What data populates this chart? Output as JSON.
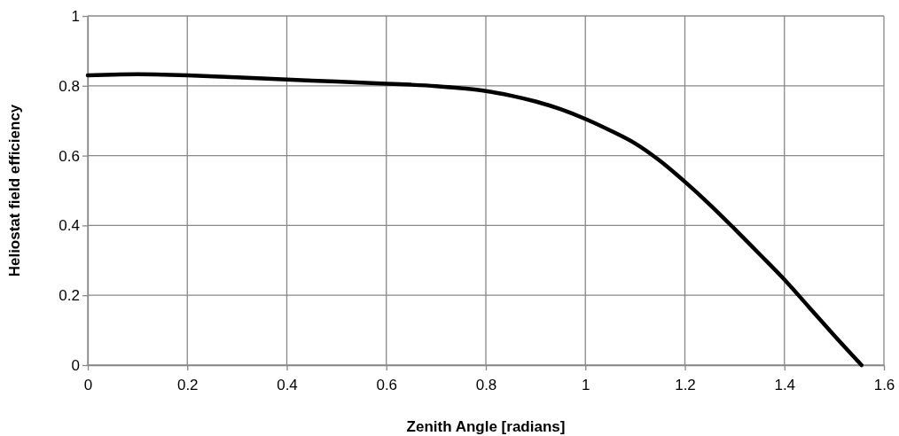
{
  "chart_data": {
    "type": "line",
    "xlabel": "Zenith Angle [radians]",
    "ylabel": "Heliostat field efficiency",
    "x": [
      0,
      0.05,
      0.1,
      0.15,
      0.2,
      0.3,
      0.4,
      0.5,
      0.6,
      0.65,
      0.7,
      0.75,
      0.8,
      0.85,
      0.9,
      0.95,
      1.0,
      1.05,
      1.1,
      1.15,
      1.2,
      1.25,
      1.3,
      1.35,
      1.4,
      1.45,
      1.5,
      1.555
    ],
    "series": [
      {
        "color": "#000000",
        "values": [
          0.83,
          0.832,
          0.833,
          0.832,
          0.83,
          0.824,
          0.818,
          0.812,
          0.806,
          0.803,
          0.799,
          0.793,
          0.785,
          0.772,
          0.755,
          0.733,
          0.705,
          0.672,
          0.635,
          0.585,
          0.525,
          0.46,
          0.39,
          0.318,
          0.245,
          0.165,
          0.085,
          0
        ]
      }
    ],
    "xlim": [
      0,
      1.6
    ],
    "xticks": [
      0,
      0.2,
      0.4,
      0.6,
      0.8,
      1,
      1.2,
      1.4,
      1.6
    ],
    "ylim": [
      0,
      1
    ],
    "yticks": [
      0,
      0.2,
      0.4,
      0.6,
      0.8,
      1
    ],
    "grid": true,
    "marker": "none",
    "line_style": "solid"
  }
}
